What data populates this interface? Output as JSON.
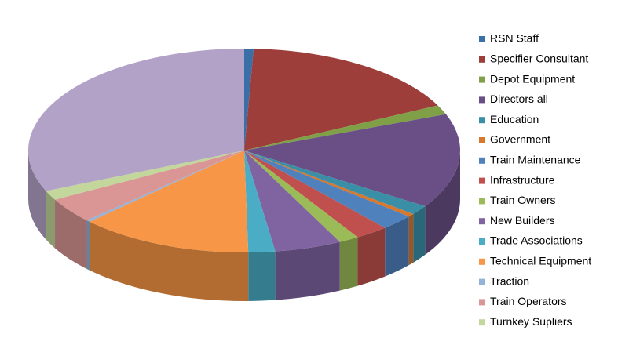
{
  "chart_data": {
    "type": "pie3d",
    "categories": [
      "RSN Staff",
      "Specifier Consultant",
      "Depot Equipment",
      "Directors all",
      "Education",
      "Government",
      "Train Maintenance",
      "Infrastructure",
      "Train Owners",
      "New Builders",
      "Trade Associations",
      "Technical Equipment",
      "Traction",
      "Train Operators",
      "Turnkey Supliers",
      null
    ],
    "values": [
      0.7,
      17,
      1.5,
      15,
      1.5,
      0.5,
      2.5,
      2.5,
      1.5,
      5,
      2,
      13,
      0.3,
      4,
      1.5,
      31.5
    ],
    "colors": [
      "#3A6FA8",
      "#9E3E3B",
      "#7FA046",
      "#6A4F86",
      "#3A8FA6",
      "#D7782E",
      "#4F81BD",
      "#C0504D",
      "#9BBB59",
      "#8064A2",
      "#4BACC6",
      "#F79646",
      "#95B3D7",
      "#D99694",
      "#C3D69B",
      "#B3A2C7"
    ],
    "legend": "right"
  }
}
